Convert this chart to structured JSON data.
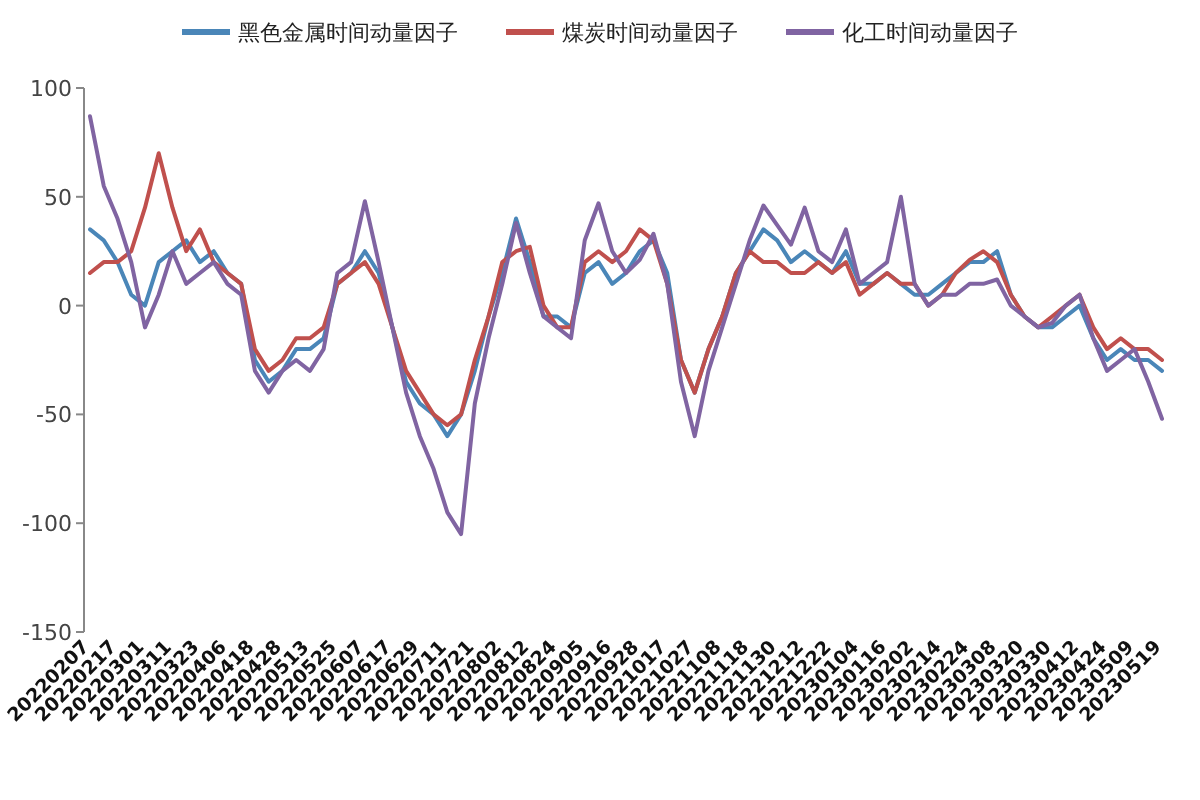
{
  "chart_data": {
    "type": "line",
    "legend": "top",
    "ylim": [
      -150,
      100
    ],
    "yticks": [
      -150,
      -100,
      -50,
      0,
      50,
      100
    ],
    "categories": [
      "20220207",
      null,
      "20220217",
      null,
      "20220301",
      null,
      "20220311",
      null,
      "20220323",
      null,
      "20220406",
      null,
      "20220418",
      null,
      "20220428",
      null,
      "20220513",
      null,
      "20220525",
      null,
      "20220607",
      null,
      "20220617",
      null,
      "20220629",
      null,
      "20220711",
      null,
      "20220721",
      null,
      "20220802",
      null,
      "20220812",
      null,
      "20220824",
      null,
      "20220905",
      null,
      "20220916",
      null,
      "20220928",
      null,
      "20221017",
      null,
      "20221027",
      null,
      "20221108",
      null,
      "20221118",
      null,
      "20221130",
      null,
      "20221212",
      null,
      "20221222",
      null,
      "20230104",
      null,
      "20230116",
      null,
      "20230202",
      null,
      "20230214",
      null,
      "20230224",
      null,
      "20230308",
      null,
      "20230320",
      null,
      "20230330",
      null,
      "20230412",
      null,
      "20230424",
      null,
      "20230509",
      null,
      "20230519"
    ],
    "series": [
      {
        "name": "黑色金属时间动量因子",
        "color": "#4a86b8",
        "values": [
          35,
          30,
          20,
          5,
          0,
          20,
          25,
          30,
          20,
          25,
          15,
          10,
          -25,
          -35,
          -30,
          -20,
          -20,
          -15,
          10,
          15,
          25,
          15,
          -10,
          -35,
          -45,
          -50,
          -60,
          -50,
          -30,
          -5,
          15,
          40,
          20,
          -5,
          -5,
          -10,
          15,
          20,
          10,
          15,
          25,
          30,
          15,
          -25,
          -40,
          -20,
          -5,
          15,
          25,
          35,
          30,
          20,
          25,
          20,
          15,
          25,
          10,
          10,
          15,
          10,
          5,
          5,
          10,
          15,
          20,
          20,
          25,
          5,
          -5,
          -10,
          -10,
          -5,
          0,
          -15,
          -25,
          -20,
          -25,
          -25,
          -30
        ]
      },
      {
        "name": "煤炭时间动量因子",
        "color": "#c0504d",
        "values": [
          15,
          20,
          20,
          25,
          45,
          70,
          45,
          25,
          35,
          20,
          15,
          10,
          -20,
          -30,
          -25,
          -15,
          -15,
          -10,
          10,
          15,
          20,
          10,
          -10,
          -30,
          -40,
          -50,
          -55,
          -50,
          -25,
          -5,
          20,
          25,
          27,
          0,
          -10,
          -10,
          20,
          25,
          20,
          25,
          35,
          30,
          10,
          -25,
          -40,
          -20,
          -5,
          15,
          25,
          20,
          20,
          15,
          15,
          20,
          15,
          20,
          5,
          10,
          15,
          10,
          10,
          0,
          5,
          15,
          21,
          25,
          20,
          5,
          -5,
          -10,
          -5,
          0,
          5,
          -10,
          -20,
          -15,
          -20,
          -20,
          -25
        ]
      },
      {
        "name": "化工时间动量因子",
        "color": "#8064a2",
        "values": [
          87,
          55,
          40,
          20,
          -10,
          5,
          25,
          10,
          15,
          20,
          10,
          5,
          -30,
          -40,
          -30,
          -25,
          -30,
          -20,
          15,
          20,
          48,
          20,
          -10,
          -40,
          -60,
          -75,
          -95,
          -105,
          -45,
          -15,
          10,
          38,
          15,
          -5,
          -10,
          -15,
          30,
          47,
          25,
          15,
          21,
          33,
          10,
          -35,
          -60,
          -30,
          -10,
          10,
          30,
          46,
          37,
          28,
          45,
          25,
          20,
          35,
          10,
          15,
          20,
          50,
          10,
          0,
          5,
          5,
          10,
          10,
          12,
          0,
          -5,
          -10,
          -8,
          0,
          5,
          -15,
          -30,
          -25,
          -20,
          -35,
          -52
        ]
      }
    ]
  }
}
